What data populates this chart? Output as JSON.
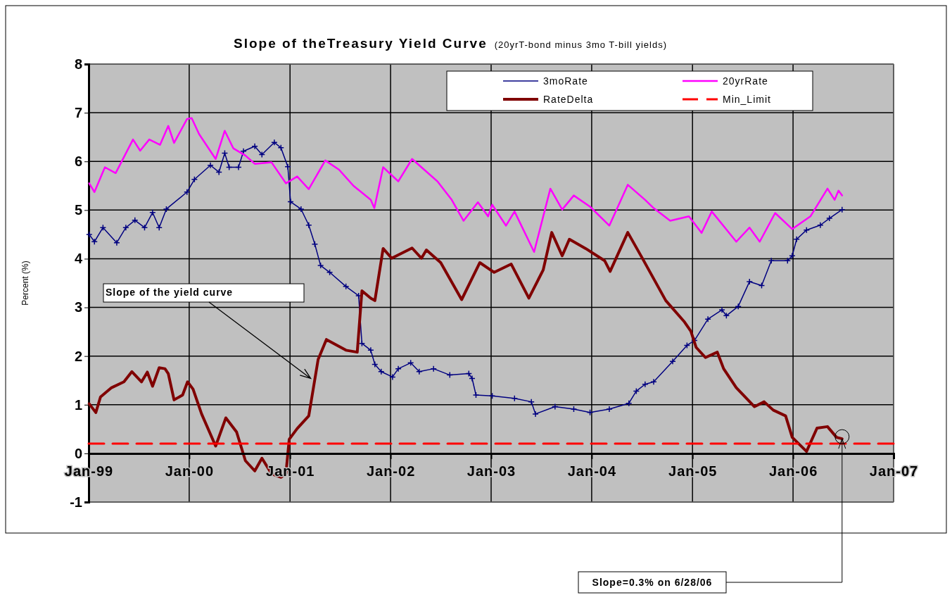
{
  "chart_data": {
    "type": "line",
    "title": "Slope of theTreasury Yield Curve",
    "subtitle": "(20yrT-bond minus 3mo T-bill yields)",
    "ylabel": "Percent (%)",
    "xlim": [
      "1999-01-01",
      "2007-01-01"
    ],
    "xticks": [
      {
        "value": "1999-01-01",
        "label": "Jan-99"
      },
      {
        "value": "2000-01-01",
        "label": "Jan-00"
      },
      {
        "value": "2001-01-01",
        "label": "Jan-01"
      },
      {
        "value": "2002-01-01",
        "label": "Jan-02"
      },
      {
        "value": "2003-01-01",
        "label": "Jan-03"
      },
      {
        "value": "2004-01-01",
        "label": "Jan-04"
      },
      {
        "value": "2005-01-01",
        "label": "Jan-05"
      },
      {
        "value": "2006-01-01",
        "label": "Jan-06"
      },
      {
        "value": "2007-01-01",
        "label": "Jan-07"
      }
    ],
    "ylim": [
      -1,
      8
    ],
    "yticks": [
      -1,
      0,
      1,
      2,
      3,
      4,
      5,
      6,
      7,
      8
    ],
    "grid": true,
    "legend": "top right",
    "annotations": [
      {
        "text": "Slope of the yield curve",
        "x": "2001-03-17",
        "y": 1.54
      },
      "Slope=0.3% on 6/28/06"
    ],
    "series": [
      {
        "name": "3moRate",
        "color": "#000080",
        "marker": "cross",
        "x": [
          "1999-01-03",
          "1999-01-22",
          "1999-02-22",
          "1999-04-13",
          "1999-05-16",
          "1999-06-18",
          "1999-07-23",
          "1999-08-21",
          "1999-09-14",
          "1999-10-10",
          "1999-12-24",
          "2000-01-20",
          "2000-03-18",
          "2000-04-18",
          "2000-05-09",
          "2000-05-25",
          "2000-06-28",
          "2000-07-16",
          "2000-08-26",
          "2000-09-21",
          "2000-11-05",
          "2000-11-29",
          "2000-12-24",
          "2001-01-03",
          "2001-02-10",
          "2001-03-10",
          "2001-04-01",
          "2001-04-22",
          "2001-05-25",
          "2001-07-23",
          "2001-09-07",
          "2001-09-19",
          "2001-10-21",
          "2001-11-05",
          "2001-11-28",
          "2002-01-08",
          "2002-01-29",
          "2002-03-15",
          "2002-04-15",
          "2002-06-06",
          "2002-08-04",
          "2002-10-12",
          "2002-10-24",
          "2002-11-07",
          "2003-01-05",
          "2003-03-27",
          "2003-05-27",
          "2003-06-11",
          "2003-08-21",
          "2003-10-28",
          "2003-12-26",
          "2004-03-05",
          "2004-05-15",
          "2004-06-11",
          "2004-07-13",
          "2004-08-13",
          "2004-10-21",
          "2004-12-12",
          "2005-01-08",
          "2005-02-26",
          "2005-04-18",
          "2005-05-04",
          "2005-06-16",
          "2005-07-27",
          "2005-09-09",
          "2005-10-14",
          "2005-12-12",
          "2005-12-29",
          "2006-01-14",
          "2006-02-19",
          "2006-04-10",
          "2006-05-13",
          "2006-06-28"
        ],
        "values": [
          4.5,
          4.35,
          4.64,
          4.33,
          4.64,
          4.79,
          4.64,
          4.95,
          4.64,
          5.02,
          5.37,
          5.63,
          5.92,
          5.78,
          6.17,
          5.88,
          5.88,
          6.21,
          6.31,
          6.14,
          6.39,
          6.28,
          5.89,
          5.17,
          5.02,
          4.69,
          4.3,
          3.86,
          3.72,
          3.43,
          3.24,
          2.26,
          2.12,
          1.83,
          1.68,
          1.57,
          1.74,
          1.86,
          1.68,
          1.74,
          1.61,
          1.64,
          1.54,
          1.2,
          1.18,
          1.13,
          1.06,
          0.81,
          0.96,
          0.91,
          0.84,
          0.91,
          1.03,
          1.28,
          1.42,
          1.47,
          1.89,
          2.22,
          2.32,
          2.76,
          2.95,
          2.83,
          3.02,
          3.53,
          3.45,
          3.96,
          3.96,
          4.06,
          4.4,
          4.59,
          4.69,
          4.83,
          5.01
        ]
      },
      {
        "name": "20yrRate",
        "color": "#ff00ff",
        "x": [
          "1999-01-03",
          "1999-01-22",
          "1999-03-01",
          "1999-04-09",
          "1999-06-11",
          "1999-07-07",
          "1999-08-09",
          "1999-09-17",
          "1999-10-17",
          "1999-11-07",
          "1999-12-24",
          "2000-01-10",
          "2000-02-06",
          "2000-04-06",
          "2000-05-09",
          "2000-06-09",
          "2000-07-23",
          "2000-08-26",
          "2000-10-26",
          "2000-12-17",
          "2001-01-27",
          "2001-03-10",
          "2001-05-09",
          "2001-06-28",
          "2001-08-19",
          "2001-10-21",
          "2001-11-03",
          "2001-12-05",
          "2002-01-29",
          "2002-03-20",
          "2002-04-23",
          "2002-06-20",
          "2002-08-11",
          "2002-09-23",
          "2002-11-14",
          "2002-12-21",
          "2003-01-05",
          "2003-02-24",
          "2003-03-27",
          "2003-06-06",
          "2003-08-04",
          "2003-09-16",
          "2003-10-28",
          "2003-12-26",
          "2004-03-05",
          "2004-05-11",
          "2004-07-13",
          "2004-08-13",
          "2004-10-12",
          "2004-12-19",
          "2005-02-03",
          "2005-03-12",
          "2005-06-09",
          "2005-07-27",
          "2005-09-02",
          "2005-10-28",
          "2005-12-29",
          "2006-03-05",
          "2006-05-06",
          "2006-06-01",
          "2006-06-15",
          "2006-06-28"
        ],
        "values": [
          5.55,
          5.37,
          5.88,
          5.76,
          6.45,
          6.22,
          6.45,
          6.34,
          6.73,
          6.38,
          6.87,
          6.89,
          6.56,
          6.05,
          6.63,
          6.27,
          6.12,
          5.95,
          5.98,
          5.55,
          5.69,
          5.43,
          6.02,
          5.83,
          5.5,
          5.21,
          5.04,
          5.88,
          5.59,
          6.05,
          5.88,
          5.59,
          5.21,
          4.78,
          5.16,
          4.87,
          5.11,
          4.68,
          4.97,
          4.14,
          5.44,
          5.01,
          5.3,
          5.07,
          4.68,
          5.52,
          5.21,
          5.04,
          4.78,
          4.87,
          4.53,
          4.97,
          4.35,
          4.64,
          4.35,
          4.94,
          4.61,
          4.87,
          5.44,
          5.21,
          5.4,
          5.3
        ]
      },
      {
        "name": "RateDelta",
        "color": "#800000",
        "x": [
          "1999-01-03",
          "1999-01-27",
          "1999-02-13",
          "1999-03-25",
          "1999-05-09",
          "1999-06-07",
          "1999-07-12",
          "1999-08-02",
          "1999-08-21",
          "1999-09-14",
          "1999-10-05",
          "1999-10-17",
          "1999-11-07",
          "1999-12-08",
          "1999-12-26",
          "2000-01-15",
          "2000-02-15",
          "2000-04-06",
          "2000-05-13",
          "2000-06-21",
          "2000-07-23",
          "2000-08-26",
          "2000-09-21",
          "2000-10-26",
          "2000-11-29",
          "2000-12-17",
          "2000-12-29",
          "2001-01-27",
          "2001-03-10",
          "2001-04-13",
          "2001-05-13",
          "2001-06-21",
          "2001-07-23",
          "2001-09-02",
          "2001-09-19",
          "2001-10-21",
          "2001-11-05",
          "2001-12-05",
          "2002-01-05",
          "2002-03-20",
          "2002-04-23",
          "2002-05-11",
          "2002-07-02",
          "2002-09-16",
          "2002-11-21",
          "2003-01-12",
          "2003-03-15",
          "2003-05-18",
          "2003-07-09",
          "2003-08-09",
          "2003-09-16",
          "2003-10-12",
          "2003-12-10",
          "2004-02-17",
          "2004-03-08",
          "2004-05-11",
          "2004-07-01",
          "2004-09-26",
          "2004-12-03",
          "2004-12-26",
          "2005-01-14",
          "2005-02-17",
          "2005-04-01",
          "2005-04-24",
          "2005-06-09",
          "2005-08-14",
          "2005-09-18",
          "2005-10-21",
          "2005-12-05",
          "2005-12-29",
          "2006-02-19",
          "2006-03-29",
          "2006-05-06",
          "2006-06-08",
          "2006-06-28"
        ],
        "values": [
          1.02,
          0.84,
          1.16,
          1.35,
          1.47,
          1.68,
          1.47,
          1.67,
          1.38,
          1.76,
          1.74,
          1.64,
          1.1,
          1.2,
          1.47,
          1.32,
          0.81,
          0.15,
          0.73,
          0.44,
          -0.15,
          -0.36,
          -0.1,
          -0.42,
          -0.49,
          -0.42,
          0.29,
          0.51,
          0.77,
          1.93,
          2.34,
          2.22,
          2.12,
          2.08,
          3.34,
          3.19,
          3.14,
          4.21,
          4.01,
          4.22,
          4.01,
          4.18,
          3.92,
          3.16,
          3.92,
          3.72,
          3.89,
          3.19,
          3.77,
          4.54,
          4.06,
          4.4,
          4.21,
          3.96,
          3.74,
          4.54,
          4.03,
          3.14,
          2.7,
          2.51,
          2.18,
          1.97,
          2.08,
          1.74,
          1.35,
          0.96,
          1.06,
          0.89,
          0.77,
          0.33,
          0.04,
          0.52,
          0.55,
          0.33,
          0.3
        ]
      },
      {
        "name": "Min_Limit",
        "color": "#ff0000",
        "line_style": "dashed",
        "x": [
          "1999-01-01",
          "2007-01-01"
        ],
        "values": [
          0.2,
          0.2
        ]
      }
    ]
  }
}
